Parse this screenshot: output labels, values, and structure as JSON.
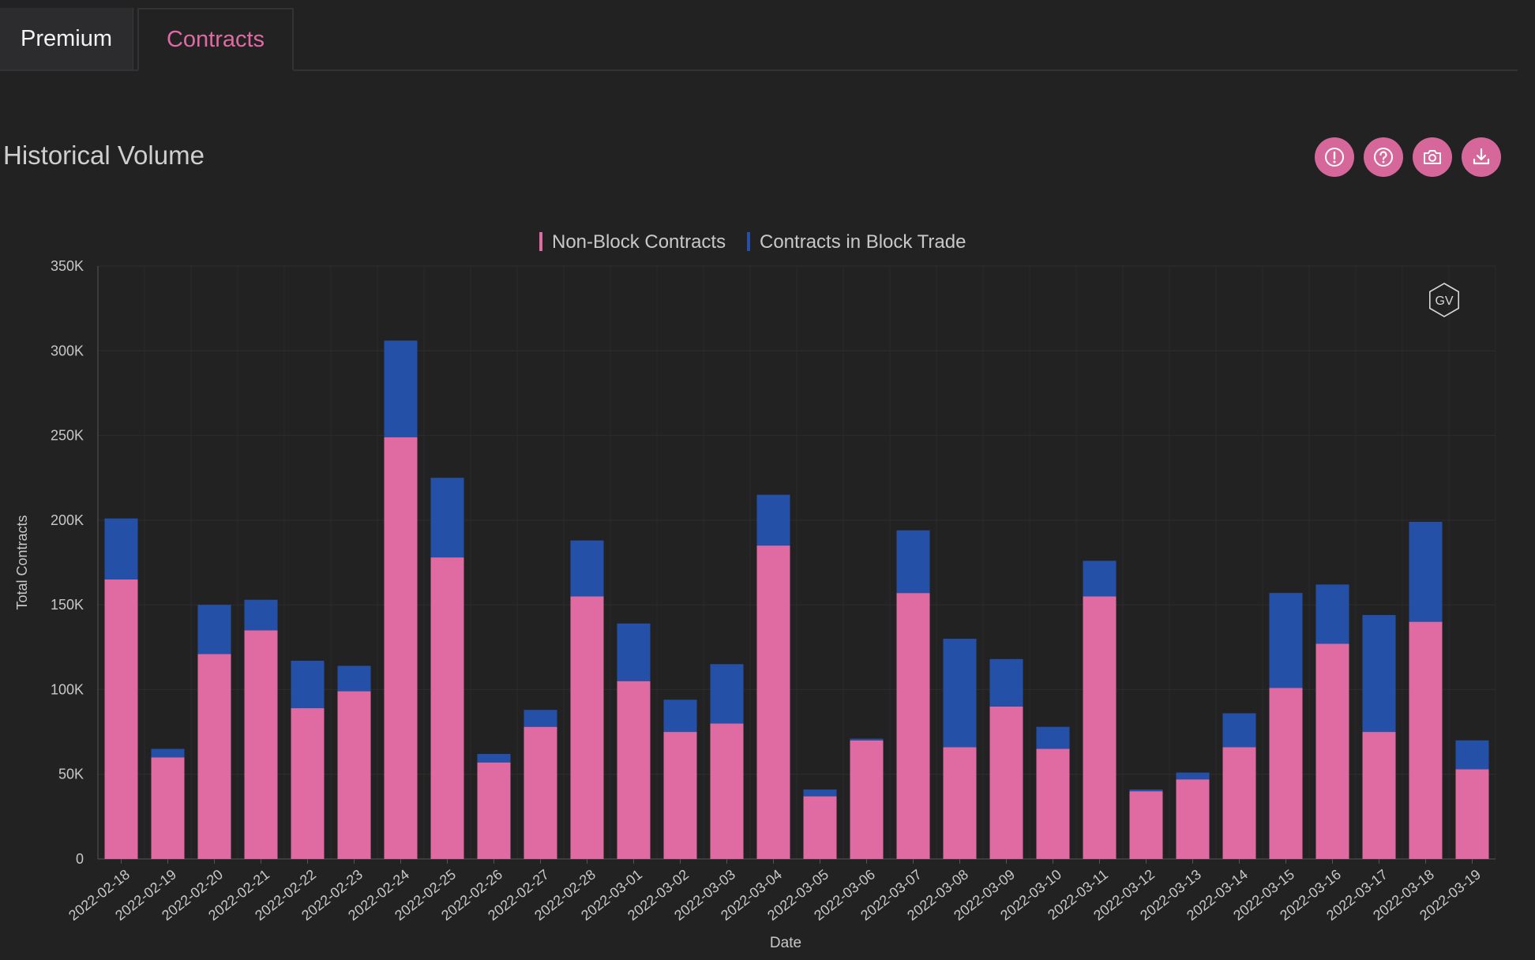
{
  "tabs": [
    {
      "label": "Premium"
    },
    {
      "label": "Contracts"
    }
  ],
  "section_title": "Historical Volume",
  "toolbar": {
    "icons": [
      "alert-icon",
      "help-icon",
      "camera-icon",
      "download-icon"
    ]
  },
  "watermark": "GV",
  "colors": {
    "non_block": "#e06aa2",
    "block": "#2450a8",
    "background": "#222223",
    "accent": "#e06aa2"
  },
  "chart_data": {
    "type": "bar",
    "stacked": true,
    "xlabel": "Date",
    "ylabel": "Total Contracts",
    "ylim": [
      0,
      350000
    ],
    "yticks": [
      0,
      50000,
      100000,
      150000,
      200000,
      250000,
      300000,
      350000
    ],
    "ytick_labels": [
      "0",
      "50K",
      "100K",
      "150K",
      "200K",
      "250K",
      "300K",
      "350K"
    ],
    "legend_position": "top-center",
    "grid": true,
    "categories": [
      "2022-02-18",
      "2022-02-19",
      "2022-02-20",
      "2022-02-21",
      "2022-02-22",
      "2022-02-23",
      "2022-02-24",
      "2022-02-25",
      "2022-02-26",
      "2022-02-27",
      "2022-02-28",
      "2022-03-01",
      "2022-03-02",
      "2022-03-03",
      "2022-03-04",
      "2022-03-05",
      "2022-03-06",
      "2022-03-07",
      "2022-03-08",
      "2022-03-09",
      "2022-03-10",
      "2022-03-11",
      "2022-03-12",
      "2022-03-13",
      "2022-03-14",
      "2022-03-15",
      "2022-03-16",
      "2022-03-17",
      "2022-03-18",
      "2022-03-19"
    ],
    "series": [
      {
        "name": "Non-Block Contracts",
        "values": [
          165000,
          60000,
          121000,
          135000,
          89000,
          99000,
          249000,
          178000,
          57000,
          78000,
          155000,
          105000,
          75000,
          80000,
          185000,
          37000,
          70000,
          157000,
          66000,
          90000,
          65000,
          155000,
          40000,
          47000,
          66000,
          101000,
          127000,
          75000,
          140000,
          53000
        ]
      },
      {
        "name": "Contracts in Block Trade",
        "values": [
          36000,
          5000,
          29000,
          18000,
          28000,
          15000,
          57000,
          47000,
          5000,
          10000,
          33000,
          34000,
          19000,
          35000,
          30000,
          4000,
          1000,
          37000,
          64000,
          28000,
          13000,
          21000,
          1000,
          4000,
          20000,
          56000,
          35000,
          69000,
          59000,
          17000
        ]
      }
    ]
  }
}
